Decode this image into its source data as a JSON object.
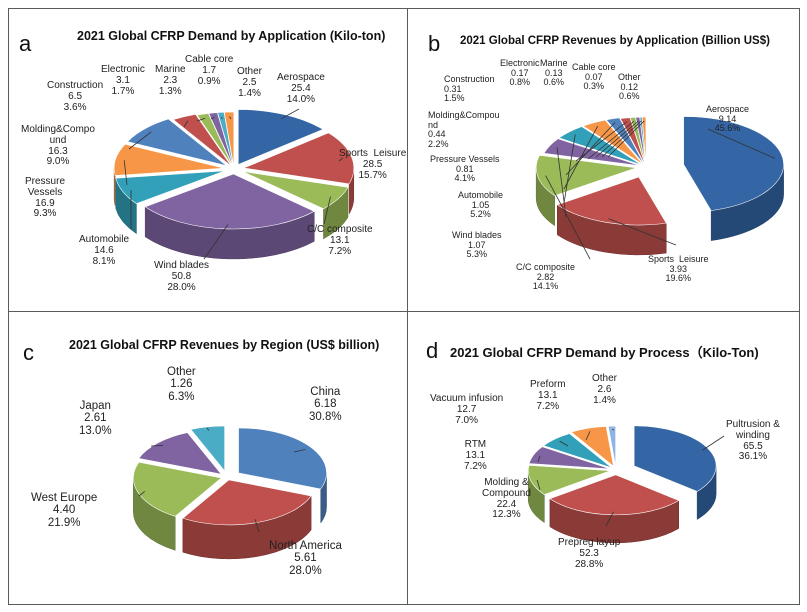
{
  "chart_data": [
    {
      "id": "a",
      "type": "pie",
      "panel_letter": "a",
      "title": "2021 Global CFRP Demand by Application (Kilo-ton)",
      "slices": [
        {
          "name": "Aerospace",
          "value": "25.4",
          "pct": "14.0%",
          "color": "#3465a4"
        },
        {
          "name": "Sports  Leisure",
          "value": "28.5",
          "pct": "15.7%",
          "color": "#c0504d"
        },
        {
          "name": "C/C composite",
          "value": "13.1",
          "pct": "7.2%",
          "color": "#9bbb59"
        },
        {
          "name": "Wind blades",
          "value": "50.8",
          "pct": "28.0%",
          "color": "#8064a2"
        },
        {
          "name": "Automobile",
          "value": "14.6",
          "pct": "8.1%",
          "color": "#31a0b8"
        },
        {
          "name": "Pressure\nVessels",
          "value": "16.9",
          "pct": "9.3%",
          "color": "#f79646"
        },
        {
          "name": "Molding&Compo\nund",
          "value": "16.3",
          "pct": "9.0%",
          "color": "#4f81bd"
        },
        {
          "name": "Construction",
          "value": "6.5",
          "pct": "3.6%",
          "color": "#c0504d"
        },
        {
          "name": "Electronic",
          "value": "3.1",
          "pct": "1.7%",
          "color": "#9bbb59"
        },
        {
          "name": "Marine",
          "value": "2.3",
          "pct": "1.3%",
          "color": "#8064a2"
        },
        {
          "name": "Cable core",
          "value": "1.7",
          "pct": "0.9%",
          "color": "#4bacc6"
        },
        {
          "name": "Other",
          "value": "2.5",
          "pct": "1.4%",
          "color": "#f79646"
        }
      ]
    },
    {
      "id": "b",
      "type": "pie",
      "panel_letter": "b",
      "title": "2021 Global CFRP Revenues by Application (Billion US$)",
      "slices": [
        {
          "name": "Aerospace",
          "value": "9.14",
          "pct": "45.6%",
          "color": "#3465a4"
        },
        {
          "name": "Sports  Leisure",
          "value": "3.93",
          "pct": "19.6%",
          "color": "#c0504d"
        },
        {
          "name": "C/C composite",
          "value": "2.82",
          "pct": "14.1%",
          "color": "#9bbb59"
        },
        {
          "name": "Wind blades",
          "value": "1.07",
          "pct": "5.3%",
          "color": "#8064a2"
        },
        {
          "name": "Automobile",
          "value": "1.05",
          "pct": "5.2%",
          "color": "#31a0b8"
        },
        {
          "name": "Pressure Vessels",
          "value": "0.81",
          "pct": "4.1%",
          "color": "#f79646"
        },
        {
          "name": "Molding&Compou\nnd",
          "value": "0.44",
          "pct": "2.2%",
          "color": "#4f81bd"
        },
        {
          "name": "Construction",
          "value": "0.31",
          "pct": "1.5%",
          "color": "#c0504d"
        },
        {
          "name": "Electronic",
          "value": "0.17",
          "pct": "0.8%",
          "color": "#9bbb59"
        },
        {
          "name": "Marine",
          "value": "0.13",
          "pct": "0.6%",
          "color": "#8064a2"
        },
        {
          "name": "Cable core",
          "value": "0.07",
          "pct": "0.3%",
          "color": "#4bacc6"
        },
        {
          "name": "Other",
          "value": "0.12",
          "pct": "0.6%",
          "color": "#f79646"
        }
      ]
    },
    {
      "id": "c",
      "type": "pie",
      "panel_letter": "c",
      "title": "2021 Global CFRP Revenues by Region (US$ billion)",
      "slices": [
        {
          "name": "China",
          "value": "6.18",
          "pct": "30.8%",
          "color": "#4f81bd"
        },
        {
          "name": "North America",
          "value": "5.61",
          "pct": "28.0%",
          "color": "#c0504d"
        },
        {
          "name": "West Europe",
          "value": "4.40",
          "pct": "21.9%",
          "color": "#9bbb59"
        },
        {
          "name": "Japan",
          "value": "2.61",
          "pct": "13.0%",
          "color": "#8064a2"
        },
        {
          "name": "Other",
          "value": "1.26",
          "pct": "6.3%",
          "color": "#4bacc6"
        }
      ]
    },
    {
      "id": "d",
      "type": "pie",
      "panel_letter": "d",
      "title": "2021 Global CFRP Demand by Process（Kilo-Ton)",
      "slices": [
        {
          "name": "Pultrusion &\nwinding",
          "value": "65.5",
          "pct": "36.1%",
          "color": "#3465a4"
        },
        {
          "name": "Prepreg layup",
          "value": "52.3",
          "pct": "28.8%",
          "color": "#c0504d"
        },
        {
          "name": "Molding &\nCompound",
          "value": "22.4",
          "pct": "12.3%",
          "color": "#9bbb59"
        },
        {
          "name": "RTM",
          "value": "13.1",
          "pct": "7.2%",
          "color": "#8064a2"
        },
        {
          "name": "Vacuum infusion",
          "value": "12.7",
          "pct": "7.0%",
          "color": "#31a0b8"
        },
        {
          "name": "Preform",
          "value": "13.1",
          "pct": "7.2%",
          "color": "#f79646"
        },
        {
          "name": "Other",
          "value": "2.6",
          "pct": "1.4%",
          "color": "#8eb4e3"
        }
      ]
    }
  ]
}
